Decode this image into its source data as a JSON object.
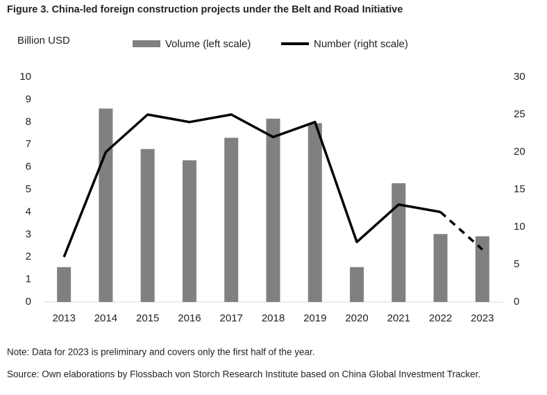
{
  "chart_data": {
    "type": "combo",
    "title": "Figure 3. China-led foreign construction projects under the Belt and Road Initiative",
    "y_label": "Billion USD",
    "categories": [
      "2013",
      "2014",
      "2015",
      "2016",
      "2017",
      "2018",
      "2019",
      "2020",
      "2021",
      "2022",
      "2023"
    ],
    "series": [
      {
        "name": "Volume (left scale)",
        "type": "bar",
        "color": "#808080",
        "values": [
          1.55,
          8.6,
          6.8,
          6.3,
          7.3,
          8.15,
          7.95,
          1.55,
          5.28,
          3.02,
          2.92
        ]
      },
      {
        "name": "Number (right scale)",
        "type": "line",
        "axis": "y2",
        "color": "#000000",
        "dashed_last_segment": true,
        "values": [
          6,
          20,
          25,
          24,
          25,
          22,
          24,
          8,
          13,
          12,
          7
        ]
      }
    ],
    "ylim": [
      0,
      10
    ],
    "yticks": [
      0,
      1,
      2,
      3,
      4,
      5,
      6,
      7,
      8,
      9,
      10
    ],
    "y2lim": [
      0,
      30
    ],
    "y2ticks": [
      0,
      5,
      10,
      15,
      20,
      25,
      30
    ],
    "grid": false,
    "notes": [
      "Note: Data for 2023 is preliminary and covers only the first half of the year.",
      "Source: Own elaborations by Flossbach von Storch Research Institute based on China Global Investment Tracker."
    ]
  }
}
